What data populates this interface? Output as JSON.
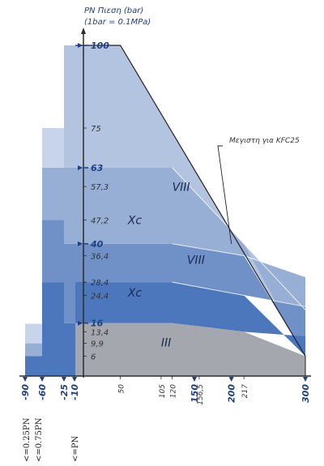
{
  "chart_data": {
    "type": "area",
    "y_title": "PN Πιεση (bar)",
    "y_subtitle": "(1bar = 0.1MPa)",
    "ylim": [
      0,
      100
    ],
    "xlim": [
      -90,
      300
    ],
    "y_ticks": [
      {
        "value": 100,
        "label": "100",
        "major": true
      },
      {
        "value": 75,
        "label": "75",
        "major": false
      },
      {
        "value": 63,
        "label": "63",
        "major": true
      },
      {
        "value": 57.3,
        "label": "57,3",
        "major": false
      },
      {
        "value": 47.2,
        "label": "47,2",
        "major": false
      },
      {
        "value": 40,
        "label": "40",
        "major": true
      },
      {
        "value": 36.4,
        "label": "36,4",
        "major": false
      },
      {
        "value": 28.4,
        "label": "28,4",
        "major": false
      },
      {
        "value": 24.4,
        "label": "24,4",
        "major": false
      },
      {
        "value": 16,
        "label": "16",
        "major": true
      },
      {
        "value": 13.4,
        "label": "13,4",
        "major": false
      },
      {
        "value": 9.9,
        "label": "9,9",
        "major": false
      },
      {
        "value": 6,
        "label": "6",
        "major": false
      }
    ],
    "x_ticks": [
      {
        "value": -90,
        "label": "-90",
        "major": true
      },
      {
        "value": -60,
        "label": "-60",
        "major": true
      },
      {
        "value": -25,
        "label": "-25",
        "major": true
      },
      {
        "value": -10,
        "label": "-10",
        "major": true
      },
      {
        "value": 50,
        "label": "50",
        "major": false
      },
      {
        "value": 105,
        "label": "105",
        "major": false
      },
      {
        "value": 120,
        "label": "120",
        "major": false
      },
      {
        "value": 150,
        "label": "150",
        "major": true
      },
      {
        "value": 156.5,
        "label": "156,5",
        "major": false
      },
      {
        "value": 200,
        "label": "200",
        "major": true
      },
      {
        "value": 217,
        "label": "217",
        "major": false
      },
      {
        "value": 300,
        "label": "300",
        "major": true
      }
    ],
    "negative_labels": [
      "<=0.25PN",
      "<=0.75PN",
      "<=PN"
    ],
    "max_envelope": [
      [
        -10,
        100
      ],
      [
        50,
        100
      ],
      [
        300,
        6
      ]
    ],
    "max_label": "Μεγιστη για KFC25",
    "regions": [
      {
        "name": "VIII",
        "color": "#b3c4e0",
        "points": [
          [
            -10,
            63
          ],
          [
            105,
            63
          ],
          [
            120,
            63
          ],
          [
            217,
            40
          ],
          [
            300,
            20
          ],
          [
            300,
            6
          ],
          [
            50,
            100
          ],
          [
            -10,
            100
          ]
        ],
        "label_x": 120,
        "label_y": 56
      },
      {
        "name": "Xc",
        "color": "#97afd5",
        "points": [
          [
            -10,
            40
          ],
          [
            105,
            40
          ],
          [
            120,
            40
          ],
          [
            217,
            36.4
          ],
          [
            300,
            30
          ],
          [
            300,
            6
          ],
          [
            217,
            40
          ],
          [
            120,
            63
          ],
          [
            105,
            63
          ],
          [
            -10,
            63
          ]
        ],
        "label_x": 60,
        "label_y": 46
      },
      {
        "name": "VIII",
        "color": "#6f91c8",
        "points": [
          [
            -10,
            28.4
          ],
          [
            105,
            28.4
          ],
          [
            120,
            28.4
          ],
          [
            217,
            24.4
          ],
          [
            300,
            21
          ],
          [
            300,
            6
          ],
          [
            217,
            36.4
          ],
          [
            120,
            40
          ],
          [
            105,
            40
          ],
          [
            -10,
            40
          ]
        ],
        "label_x": 140,
        "label_y": 34
      },
      {
        "name": "Xc",
        "color": "#4c77bd",
        "points": [
          [
            -10,
            16
          ],
          [
            105,
            16
          ],
          [
            120,
            16
          ],
          [
            217,
            13.4
          ],
          [
            300,
            12
          ],
          [
            300,
            6
          ],
          [
            217,
            24.4
          ],
          [
            120,
            28.4
          ],
          [
            105,
            28.4
          ],
          [
            -10,
            28.4
          ]
        ],
        "label_x": 60,
        "label_y": 24
      },
      {
        "name": "III",
        "color": "#a4a7ad",
        "points": [
          [
            -10,
            0
          ],
          [
            300,
            0
          ],
          [
            300,
            6
          ],
          [
            217,
            13.4
          ],
          [
            120,
            16
          ],
          [
            105,
            16
          ],
          [
            -10,
            16
          ]
        ],
        "label_x": 105,
        "label_y": 9
      }
    ],
    "left_steps": [
      {
        "from": -90,
        "to": -60,
        "levels": [
          [
            0,
            6
          ],
          [
            6,
            9.9
          ],
          [
            9.9,
            15.8
          ]
        ],
        "colors": [
          "#4c77bd",
          "#97afd5",
          "#c8d4ea"
        ]
      },
      {
        "from": -60,
        "to": -25,
        "levels": [
          [
            0,
            28.4
          ],
          [
            28.4,
            47.2
          ],
          [
            47.2,
            63
          ],
          [
            63,
            75
          ]
        ],
        "colors": [
          "#4c77bd",
          "#6f91c8",
          "#97afd5",
          "#c8d4ea"
        ]
      },
      {
        "from": -25,
        "to": -10,
        "levels": [
          [
            0,
            16
          ],
          [
            16,
            40
          ],
          [
            40,
            63
          ],
          [
            63,
            100
          ]
        ],
        "colors": [
          "#4c77bd",
          "#6f91c8",
          "#97afd5",
          "#b3c4e0"
        ]
      }
    ]
  }
}
